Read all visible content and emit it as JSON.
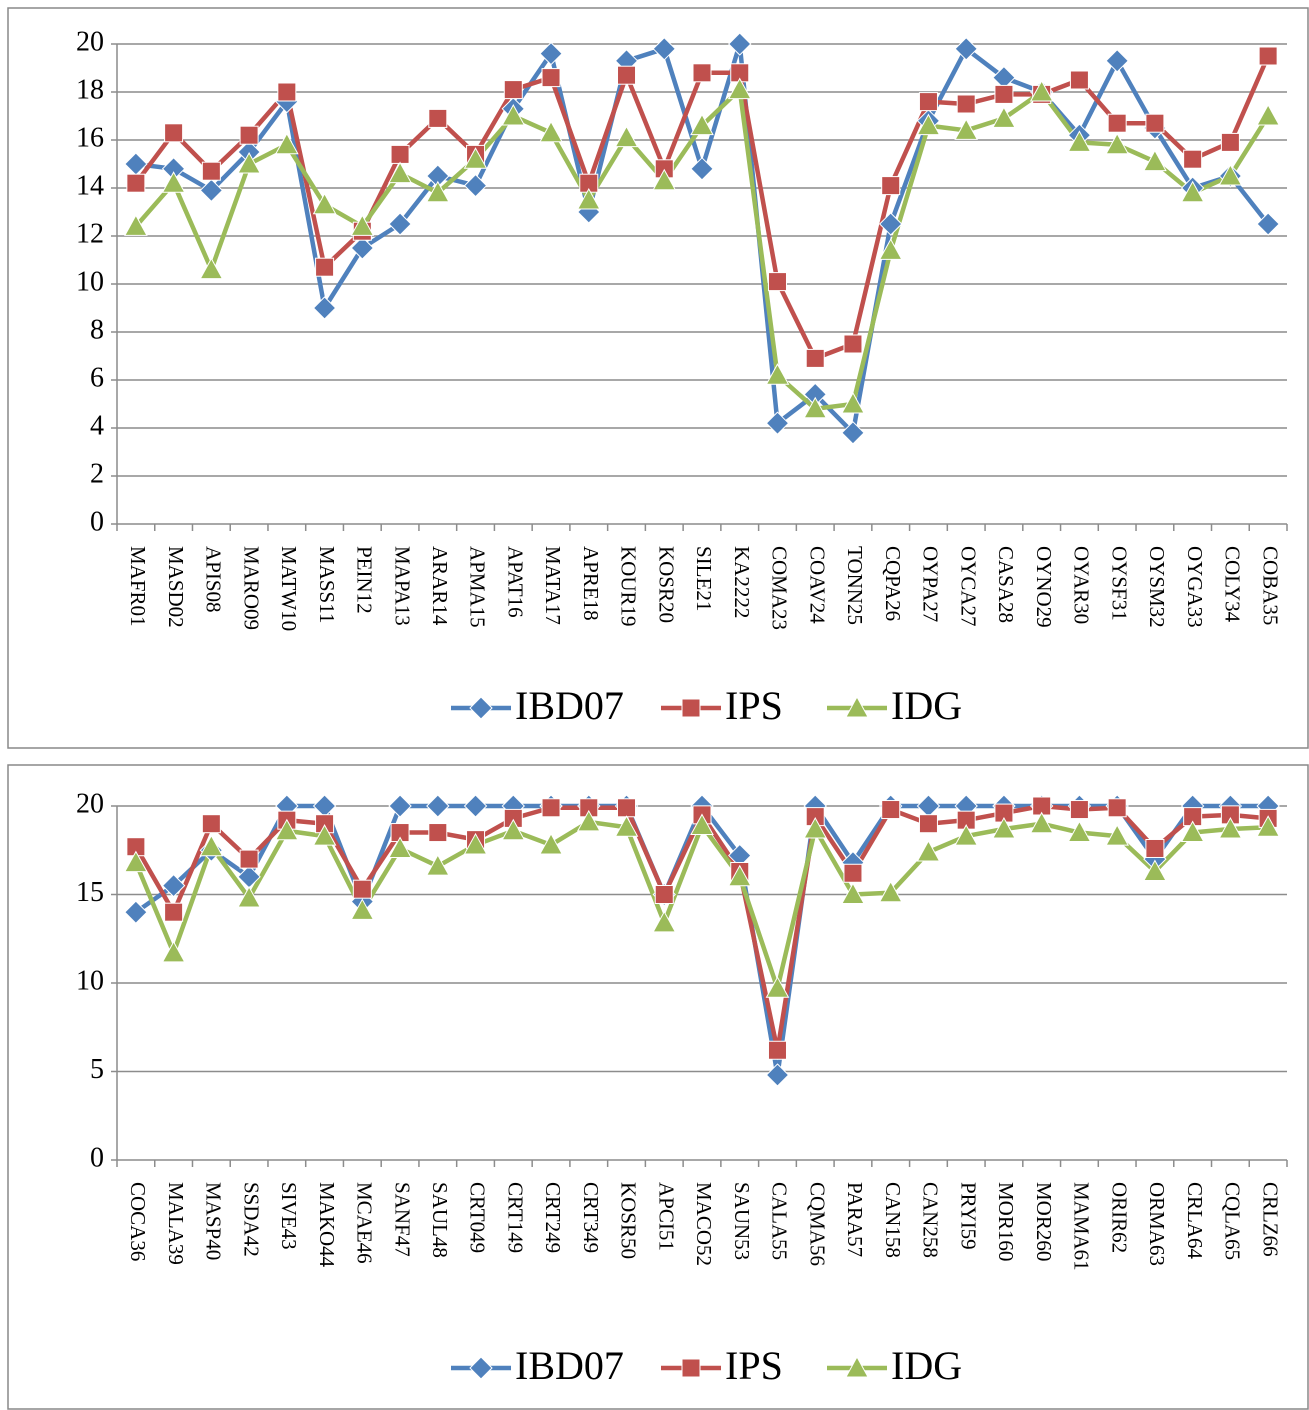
{
  "chart_data": [
    {
      "type": "line",
      "categories": [
        "MAFR01",
        "MASD02",
        "APIS08",
        "MARO09",
        "MATW10",
        "MASS11",
        "PEIN12",
        "MAPA13",
        "ARAR14",
        "APMA15",
        "APAT16",
        "MATA17",
        "APRE18",
        "KOUR19",
        "KOSR20",
        "SILE21",
        "KA2222",
        "COMA23",
        "COAV24",
        "TONN25",
        "CQPA26",
        "OYPA27",
        "OYCA27",
        "CASA28",
        "OYNO29",
        "OYAR30",
        "OYSF31",
        "OYSM32",
        "OYGA33",
        "COLY34",
        "COBA35"
      ],
      "series": [
        {
          "name": "IBD07",
          "color": "#4f81bd",
          "marker": "diamond",
          "values": [
            15.0,
            14.8,
            13.9,
            15.5,
            17.6,
            9.0,
            11.5,
            12.5,
            14.5,
            14.1,
            17.3,
            19.6,
            13.0,
            19.3,
            19.8,
            14.8,
            20.0,
            4.2,
            5.4,
            3.8,
            12.5,
            16.8,
            19.8,
            18.6,
            18.0,
            16.2,
            19.3,
            16.5,
            14.0,
            14.5,
            12.5
          ]
        },
        {
          "name": "IPS",
          "color": "#c0504d",
          "marker": "square",
          "values": [
            14.2,
            16.3,
            14.7,
            16.2,
            18.0,
            10.7,
            12.2,
            15.4,
            16.9,
            15.4,
            18.1,
            18.6,
            14.2,
            18.7,
            14.8,
            18.8,
            18.8,
            10.1,
            6.9,
            7.5,
            14.1,
            17.6,
            17.5,
            17.9,
            17.9,
            18.5,
            16.7,
            16.7,
            15.2,
            15.9,
            19.5
          ]
        },
        {
          "name": "IDG",
          "color": "#9bbb59",
          "marker": "triangle",
          "values": [
            12.4,
            14.2,
            10.6,
            15.0,
            15.8,
            13.3,
            12.4,
            14.6,
            13.8,
            15.2,
            17.0,
            16.3,
            13.5,
            16.1,
            14.3,
            16.6,
            18.1,
            6.2,
            4.8,
            5.0,
            11.4,
            16.6,
            16.4,
            16.9,
            18.0,
            15.9,
            15.8,
            15.1,
            13.8,
            14.5,
            17.0
          ]
        }
      ],
      "ylim": [
        0,
        20
      ],
      "yticks": [
        0,
        2,
        4,
        6,
        8,
        10,
        12,
        14,
        16,
        18,
        20
      ],
      "grid": true,
      "legend": "bottom"
    },
    {
      "type": "line",
      "categories": [
        "COCA36",
        "MALA39",
        "MASP40",
        "SSDA42",
        "SIVE43",
        "MAKO44",
        "MCAE46",
        "SANF47",
        "SAUL48",
        "CRT049",
        "CRT149",
        "CRT249",
        "CRT349",
        "KOSR50",
        "APCI51",
        "MACO52",
        "SAUN53",
        "CALA55",
        "CQMA56",
        "PARA57",
        "CAN158",
        "CAN258",
        "PRYI59",
        "MOR160",
        "MOR260",
        "MAMA61",
        "ORIR62",
        "ORMA63",
        "CRLA64",
        "CQLA65",
        "CRLZ66"
      ],
      "series": [
        {
          "name": "IBD07",
          "color": "#4f81bd",
          "marker": "diamond",
          "values": [
            14.0,
            15.5,
            17.5,
            16.0,
            20,
            20,
            14.6,
            20,
            20,
            20,
            20,
            20,
            20,
            20,
            15.0,
            20,
            17.2,
            4.8,
            20,
            16.8,
            20,
            20,
            20,
            20,
            20,
            20,
            20,
            17.0,
            20,
            20,
            20
          ]
        },
        {
          "name": "IPS",
          "color": "#c0504d",
          "marker": "square",
          "values": [
            17.7,
            14.0,
            19.0,
            17.0,
            19.2,
            19.0,
            15.3,
            18.5,
            18.5,
            18.1,
            19.3,
            19.9,
            19.9,
            19.9,
            15.0,
            19.5,
            16.3,
            6.2,
            19.4,
            16.2,
            19.8,
            19.0,
            19.2,
            19.6,
            20.0,
            19.8,
            19.9,
            17.6,
            19.4,
            19.5,
            19.3
          ]
        },
        {
          "name": "IDG",
          "color": "#9bbb59",
          "marker": "triangle",
          "values": [
            16.8,
            11.7,
            17.7,
            14.8,
            18.6,
            18.3,
            14.1,
            17.6,
            16.6,
            17.8,
            18.6,
            17.8,
            19.1,
            18.8,
            13.4,
            18.9,
            16.0,
            9.7,
            18.7,
            15.0,
            15.1,
            17.4,
            18.3,
            18.7,
            19.0,
            18.5,
            18.3,
            16.3,
            18.5,
            18.7,
            18.8
          ]
        }
      ],
      "ylim": [
        0,
        20
      ],
      "yticks": [
        0,
        5,
        10,
        15,
        20
      ],
      "grid": true,
      "legend": "bottom"
    }
  ]
}
